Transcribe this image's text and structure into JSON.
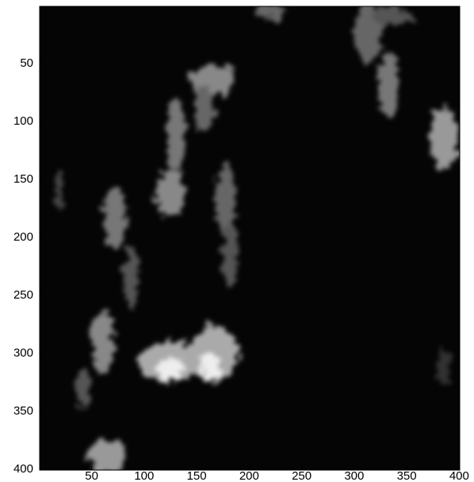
{
  "chart_data": {
    "type": "image",
    "colormap": "gray",
    "y_reversed": true,
    "xlim": [
      0.5,
      400.5
    ],
    "ylim": [
      0.5,
      400.5
    ],
    "xticks": [
      50,
      100,
      150,
      200,
      250,
      300,
      350,
      400
    ],
    "yticks": [
      50,
      100,
      150,
      200,
      250,
      300,
      350,
      400
    ]
  }
}
